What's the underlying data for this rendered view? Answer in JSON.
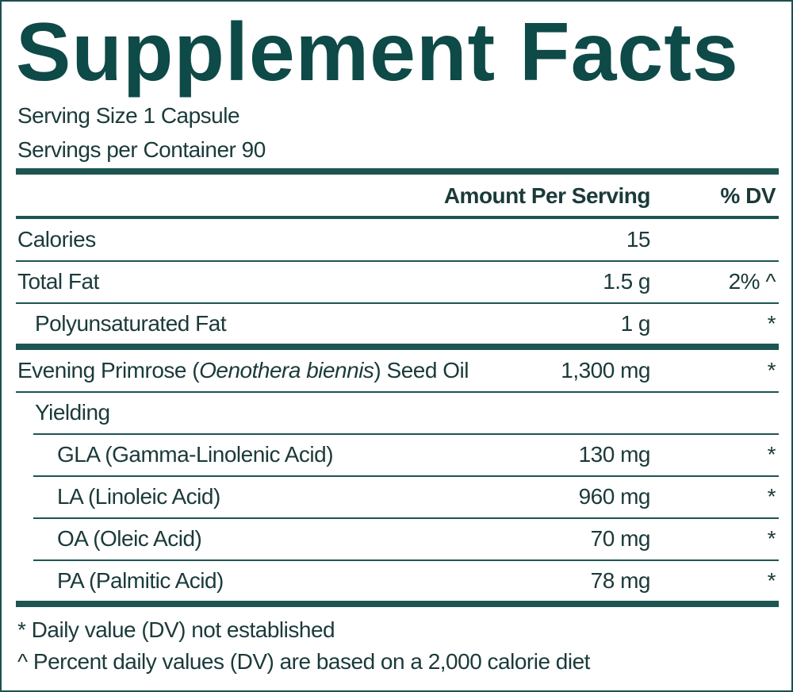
{
  "title": "Supplement Facts",
  "serving_size": "Serving Size 1 Capsule",
  "servings_per_container": "Servings per Container 90",
  "header": {
    "amount": "Amount Per Serving",
    "dv": "% DV"
  },
  "sections": [
    {
      "rows": [
        {
          "name": "Calories",
          "amount": "15",
          "indent": 0
        },
        {
          "name": "Total Fat",
          "amount": "1.5 g",
          "dv": "2% ^",
          "indent": 0
        },
        {
          "name": "Polyunsaturated Fat",
          "amount": "1 g",
          "dv": "*",
          "indent": 1
        }
      ]
    },
    {
      "rows": [
        {
          "name": "Evening Primrose (",
          "name_italic": "Oenothera biennis",
          "name_after": ") Seed Oil",
          "amount": "1,300 mg",
          "dv": "*",
          "indent": 0
        },
        {
          "name": "Yielding",
          "indent": 1
        },
        {
          "name": "GLA (Gamma-Linolenic Acid)",
          "amount": "130 mg",
          "dv": "*",
          "indent": 2
        },
        {
          "name": "LA (Linoleic Acid)",
          "amount": "960 mg",
          "dv": "*",
          "indent": 2
        },
        {
          "name": "OA (Oleic Acid)",
          "amount": "70 mg",
          "dv": "*",
          "indent": 2
        },
        {
          "name": "PA (Palmitic Acid)",
          "amount": "78 mg",
          "dv": "*",
          "indent": 2
        }
      ]
    }
  ],
  "footnotes": [
    "* Daily value (DV) not established",
    "^ Percent daily values (DV) are based on a 2,000 calorie diet"
  ]
}
